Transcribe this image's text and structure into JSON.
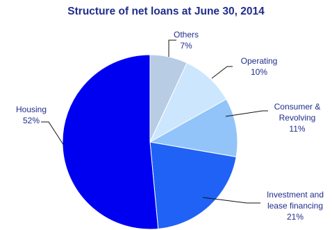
{
  "chart_data": {
    "type": "pie",
    "title": "Structure of net loans at June 30, 2014",
    "slices": [
      {
        "label_lines": [
          "Others"
        ],
        "percent_label": "7%",
        "value": 7,
        "color": "#b8cce4"
      },
      {
        "label_lines": [
          "Operating"
        ],
        "percent_label": "10%",
        "value": 10,
        "color": "#cce6fd"
      },
      {
        "label_lines": [
          "Consumer  &",
          "Revolving"
        ],
        "percent_label": "11%",
        "value": 11,
        "color": "#92c4f9"
      },
      {
        "label_lines": [
          "Investment and",
          "lease financing"
        ],
        "percent_label": "21%",
        "value": 21,
        "color": "#1f62f5"
      },
      {
        "label_lines": [
          "Housing"
        ],
        "percent_label": "52%",
        "value": 52,
        "color": "#0000f0"
      }
    ]
  }
}
